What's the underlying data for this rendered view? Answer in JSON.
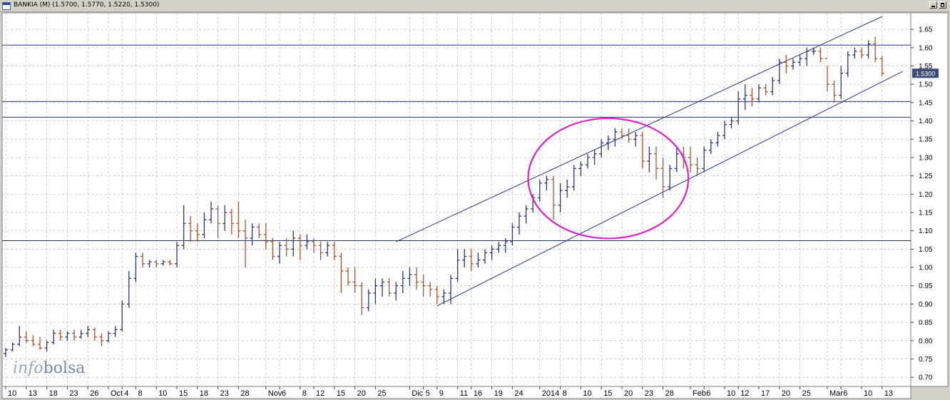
{
  "window": {
    "title": "BANKIA (M) (1.5700, 1.5770, 1.5220, 1.5300)"
  },
  "watermark": {
    "part1": "info",
    "part2": "bolsa"
  },
  "last_price_label": "1.5300",
  "colors": {
    "up_bar": "#2b3580",
    "down_bar": "#b05028",
    "trendline": "#2b3580",
    "ellipse": "#e020d0",
    "grid": "#b8b8b8",
    "price_tag_bg": "#3a4a7a"
  },
  "chart_data": {
    "type": "ohlc-bar",
    "title": "BANKIA (M)",
    "last": {
      "open": 1.57,
      "high": 1.577,
      "low": 1.522,
      "close": 1.53
    },
    "ylim": [
      0.675,
      1.695
    ],
    "yticks": [
      "0.70",
      "0.75",
      "0.80",
      "0.85",
      "0.90",
      "0.95",
      "1.00",
      "1.05",
      "1.10",
      "1.15",
      "1.20",
      "1.25",
      "1.30",
      "1.35",
      "1.40",
      "1.45",
      "1.50",
      "1.55",
      "1.60",
      "1.65"
    ],
    "grid": true,
    "xticks": [
      {
        "bar": 0,
        "label": "10"
      },
      {
        "bar": 3,
        "label": "13"
      },
      {
        "bar": 6,
        "label": "18"
      },
      {
        "bar": 9,
        "label": "23"
      },
      {
        "bar": 12,
        "label": "26"
      },
      {
        "bar": 15,
        "label": "Oct"
      },
      {
        "bar": 17,
        "label": "4"
      },
      {
        "bar": 19,
        "label": "8"
      },
      {
        "bar": 22,
        "label": "10"
      },
      {
        "bar": 25,
        "label": "15"
      },
      {
        "bar": 28,
        "label": "18"
      },
      {
        "bar": 31,
        "label": "23"
      },
      {
        "bar": 34,
        "label": "28"
      },
      {
        "bar": 38,
        "label": "Nov"
      },
      {
        "bar": 40,
        "label": "6"
      },
      {
        "bar": 43,
        "label": "8"
      },
      {
        "bar": 45,
        "label": "12"
      },
      {
        "bar": 48,
        "label": "15"
      },
      {
        "bar": 51,
        "label": "20"
      },
      {
        "bar": 54,
        "label": "25"
      },
      {
        "bar": 59,
        "label": "Dic"
      },
      {
        "bar": 61,
        "label": "5"
      },
      {
        "bar": 63,
        "label": "9"
      },
      {
        "bar": 66,
        "label": "11"
      },
      {
        "bar": 68,
        "label": "16"
      },
      {
        "bar": 71,
        "label": "19"
      },
      {
        "bar": 74,
        "label": "24"
      },
      {
        "bar": 78,
        "label": "2014"
      },
      {
        "bar": 81,
        "label": "8"
      },
      {
        "bar": 84,
        "label": "10"
      },
      {
        "bar": 87,
        "label": "15"
      },
      {
        "bar": 90,
        "label": "20"
      },
      {
        "bar": 93,
        "label": "23"
      },
      {
        "bar": 96,
        "label": "28"
      },
      {
        "bar": 100,
        "label": "Feb"
      },
      {
        "bar": 102,
        "label": "6"
      },
      {
        "bar": 105,
        "label": "10"
      },
      {
        "bar": 107,
        "label": "12"
      },
      {
        "bar": 110,
        "label": "17"
      },
      {
        "bar": 113,
        "label": "20"
      },
      {
        "bar": 116,
        "label": "25"
      },
      {
        "bar": 120,
        "label": "Mar"
      },
      {
        "bar": 122,
        "label": "6"
      },
      {
        "bar": 125,
        "label": "10"
      },
      {
        "bar": 128,
        "label": "13"
      }
    ],
    "bars": [
      [
        0.765,
        0.78,
        0.755,
        0.775
      ],
      [
        0.775,
        0.795,
        0.77,
        0.79
      ],
      [
        0.79,
        0.84,
        0.785,
        0.81
      ],
      [
        0.81,
        0.825,
        0.795,
        0.8
      ],
      [
        0.8,
        0.815,
        0.785,
        0.79
      ],
      [
        0.79,
        0.81,
        0.775,
        0.78
      ],
      [
        0.78,
        0.8,
        0.77,
        0.795
      ],
      [
        0.795,
        0.83,
        0.79,
        0.82
      ],
      [
        0.82,
        0.83,
        0.8,
        0.81
      ],
      [
        0.81,
        0.825,
        0.8,
        0.82
      ],
      [
        0.82,
        0.83,
        0.8,
        0.81
      ],
      [
        0.81,
        0.83,
        0.805,
        0.82
      ],
      [
        0.82,
        0.84,
        0.81,
        0.83
      ],
      [
        0.83,
        0.835,
        0.8,
        0.81
      ],
      [
        0.81,
        0.82,
        0.785,
        0.8
      ],
      [
        0.8,
        0.825,
        0.795,
        0.82
      ],
      [
        0.82,
        0.84,
        0.81,
        0.83
      ],
      [
        0.83,
        0.91,
        0.825,
        0.9
      ],
      [
        0.9,
        0.99,
        0.89,
        0.97
      ],
      [
        0.97,
        1.04,
        0.96,
        1.03
      ],
      [
        1.03,
        1.04,
        1.0,
        1.01
      ],
      [
        1.01,
        1.02,
        1.0,
        1.015
      ],
      [
        1.015,
        1.02,
        1.0,
        1.01
      ],
      [
        1.01,
        1.02,
        1.005,
        1.015
      ],
      [
        1.015,
        1.02,
        1.005,
        1.01
      ],
      [
        1.01,
        1.07,
        1.0,
        1.06
      ],
      [
        1.06,
        1.17,
        1.05,
        1.12
      ],
      [
        1.12,
        1.14,
        1.07,
        1.1
      ],
      [
        1.1,
        1.12,
        1.07,
        1.09
      ],
      [
        1.09,
        1.15,
        1.08,
        1.13
      ],
      [
        1.13,
        1.18,
        1.12,
        1.16
      ],
      [
        1.16,
        1.17,
        1.08,
        1.12
      ],
      [
        1.12,
        1.17,
        1.1,
        1.15
      ],
      [
        1.15,
        1.16,
        1.09,
        1.12
      ],
      [
        1.12,
        1.18,
        1.08,
        1.1
      ],
      [
        1.1,
        1.13,
        1.0,
        1.08
      ],
      [
        1.08,
        1.12,
        1.06,
        1.11
      ],
      [
        1.11,
        1.12,
        1.08,
        1.09
      ],
      [
        1.09,
        1.12,
        1.05,
        1.07
      ],
      [
        1.07,
        1.08,
        1.02,
        1.03
      ],
      [
        1.03,
        1.07,
        1.01,
        1.06
      ],
      [
        1.06,
        1.08,
        1.03,
        1.05
      ],
      [
        1.05,
        1.1,
        1.03,
        1.08
      ],
      [
        1.08,
        1.09,
        1.02,
        1.06
      ],
      [
        1.06,
        1.09,
        1.05,
        1.07
      ],
      [
        1.07,
        1.08,
        1.04,
        1.06
      ],
      [
        1.06,
        1.07,
        1.02,
        1.04
      ],
      [
        1.04,
        1.07,
        1.03,
        1.06
      ],
      [
        1.06,
        1.07,
        1.02,
        1.03
      ],
      [
        1.03,
        1.04,
        0.93,
        0.99
      ],
      [
        0.99,
        1.0,
        0.95,
        0.96
      ],
      [
        0.96,
        1.0,
        0.93,
        0.95
      ],
      [
        0.95,
        0.96,
        0.87,
        0.89
      ],
      [
        0.89,
        0.94,
        0.88,
        0.93
      ],
      [
        0.93,
        0.97,
        0.9,
        0.95
      ],
      [
        0.95,
        0.97,
        0.92,
        0.96
      ],
      [
        0.96,
        0.97,
        0.92,
        0.93
      ],
      [
        0.93,
        0.96,
        0.91,
        0.95
      ],
      [
        0.95,
        0.99,
        0.93,
        0.97
      ],
      [
        0.97,
        1.0,
        0.95,
        0.98
      ],
      [
        0.98,
        1.0,
        0.94,
        0.96
      ],
      [
        0.96,
        0.98,
        0.92,
        0.95
      ],
      [
        0.95,
        0.96,
        0.92,
        0.94
      ],
      [
        0.94,
        0.95,
        0.9,
        0.92
      ],
      [
        0.92,
        0.94,
        0.9,
        0.93
      ],
      [
        0.93,
        0.98,
        0.9,
        0.97
      ],
      [
        0.97,
        1.05,
        0.96,
        1.02
      ],
      [
        1.02,
        1.05,
        1.0,
        1.03
      ],
      [
        1.03,
        1.05,
        0.99,
        1.01
      ],
      [
        1.01,
        1.04,
        1.0,
        1.02
      ],
      [
        1.02,
        1.05,
        1.01,
        1.04
      ],
      [
        1.04,
        1.06,
        1.02,
        1.05
      ],
      [
        1.05,
        1.07,
        1.04,
        1.06
      ],
      [
        1.06,
        1.08,
        1.04,
        1.07
      ],
      [
        1.07,
        1.12,
        1.06,
        1.11
      ],
      [
        1.11,
        1.15,
        1.09,
        1.14
      ],
      [
        1.14,
        1.17,
        1.12,
        1.16
      ],
      [
        1.16,
        1.2,
        1.15,
        1.19
      ],
      [
        1.19,
        1.24,
        1.18,
        1.23
      ],
      [
        1.23,
        1.25,
        1.21,
        1.24
      ],
      [
        1.24,
        1.25,
        1.13,
        1.17
      ],
      [
        1.17,
        1.23,
        1.15,
        1.21
      ],
      [
        1.21,
        1.24,
        1.19,
        1.22
      ],
      [
        1.22,
        1.28,
        1.21,
        1.27
      ],
      [
        1.27,
        1.29,
        1.25,
        1.28
      ],
      [
        1.28,
        1.31,
        1.27,
        1.3
      ],
      [
        1.3,
        1.32,
        1.28,
        1.31
      ],
      [
        1.31,
        1.35,
        1.3,
        1.34
      ],
      [
        1.34,
        1.36,
        1.32,
        1.35
      ],
      [
        1.35,
        1.38,
        1.33,
        1.37
      ],
      [
        1.37,
        1.38,
        1.35,
        1.36
      ],
      [
        1.36,
        1.38,
        1.34,
        1.35
      ],
      [
        1.35,
        1.37,
        1.33,
        1.36
      ],
      [
        1.36,
        1.37,
        1.27,
        1.29
      ],
      [
        1.29,
        1.33,
        1.26,
        1.31
      ],
      [
        1.31,
        1.33,
        1.24,
        1.27
      ],
      [
        1.27,
        1.3,
        1.19,
        1.22
      ],
      [
        1.22,
        1.28,
        1.21,
        1.27
      ],
      [
        1.27,
        1.33,
        1.26,
        1.31
      ],
      [
        1.31,
        1.33,
        1.27,
        1.3
      ],
      [
        1.3,
        1.33,
        1.26,
        1.28
      ],
      [
        1.28,
        1.3,
        1.25,
        1.27
      ],
      [
        1.27,
        1.33,
        1.26,
        1.32
      ],
      [
        1.32,
        1.35,
        1.31,
        1.34
      ],
      [
        1.34,
        1.37,
        1.33,
        1.36
      ],
      [
        1.36,
        1.4,
        1.35,
        1.39
      ],
      [
        1.39,
        1.41,
        1.38,
        1.4
      ],
      [
        1.4,
        1.48,
        1.39,
        1.46
      ],
      [
        1.46,
        1.5,
        1.43,
        1.47
      ],
      [
        1.47,
        1.49,
        1.44,
        1.46
      ],
      [
        1.46,
        1.5,
        1.45,
        1.49
      ],
      [
        1.49,
        1.5,
        1.47,
        1.48
      ],
      [
        1.48,
        1.52,
        1.47,
        1.51
      ],
      [
        1.51,
        1.57,
        1.5,
        1.56
      ],
      [
        1.56,
        1.58,
        1.53,
        1.55
      ],
      [
        1.55,
        1.57,
        1.54,
        1.56
      ],
      [
        1.56,
        1.58,
        1.55,
        1.57
      ],
      [
        1.57,
        1.6,
        1.55,
        1.59
      ],
      [
        1.59,
        1.6,
        1.58,
        1.59
      ],
      [
        1.59,
        1.6,
        1.56,
        1.57
      ],
      [
        1.57,
        1.55,
        1.48,
        1.5
      ],
      [
        1.5,
        1.51,
        1.45,
        1.47
      ],
      [
        1.47,
        1.55,
        1.46,
        1.53
      ],
      [
        1.53,
        1.59,
        1.52,
        1.58
      ],
      [
        1.58,
        1.6,
        1.57,
        1.59
      ],
      [
        1.59,
        1.6,
        1.57,
        1.58
      ],
      [
        1.58,
        1.62,
        1.57,
        1.61
      ],
      [
        1.61,
        1.63,
        1.56,
        1.57
      ],
      [
        1.57,
        1.577,
        1.522,
        1.53
      ]
    ],
    "horizontal_lines": [
      1.607,
      1.453,
      1.41,
      1.073
    ],
    "channel": {
      "upper": {
        "from": {
          "bar": 57,
          "price": 1.07
        },
        "to": {
          "bar": 128,
          "price": 1.685
        }
      },
      "lower": {
        "from": {
          "bar": 63,
          "price": 0.895
        },
        "to": {
          "bar": 131,
          "price": 1.535
        }
      }
    },
    "annotation_ellipse": {
      "center_bar": 88,
      "center_price": 1.243,
      "rx_bars": 11.7,
      "ry_price": 0.164
    }
  }
}
